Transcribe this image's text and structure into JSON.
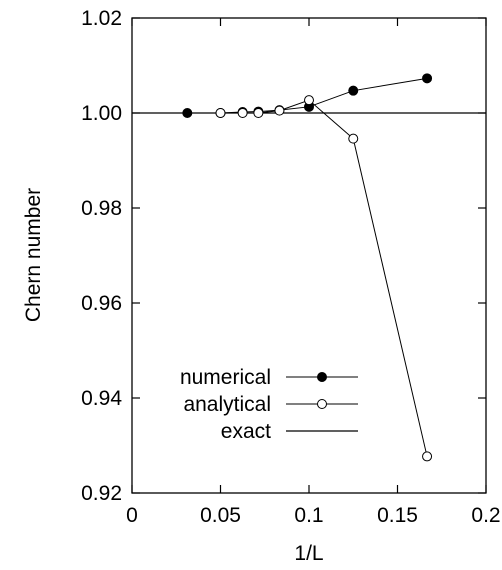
{
  "chart_data": {
    "type": "line",
    "title": "",
    "xlabel": "1/L",
    "ylabel": "Chern number",
    "xlim": [
      0,
      0.2
    ],
    "ylim": [
      0.92,
      1.02
    ],
    "xticks": [
      0,
      0.05,
      0.1,
      0.15,
      0.2
    ],
    "xtick_labels": [
      "0",
      "0.05",
      "0.1",
      "0.15",
      "0.2"
    ],
    "yticks": [
      0.92,
      0.94,
      0.96,
      0.98,
      1.0,
      1.02
    ],
    "ytick_labels": [
      "0.92",
      "0.94",
      "0.96",
      "0.98",
      "1.00",
      "1.02"
    ],
    "grid": false,
    "legend_position": "lower-center",
    "series": [
      {
        "name": "numerical",
        "marker": "filled-circle",
        "color": "#000000",
        "x": [
          0.03125,
          0.05,
          0.0625,
          0.0714,
          0.0833,
          0.1,
          0.125,
          0.1667
        ],
        "y": [
          1.0,
          1.0,
          1.0002,
          1.0003,
          1.0006,
          1.0013,
          1.0047,
          1.0073
        ]
      },
      {
        "name": "analytical",
        "marker": "open-circle",
        "color": "#000000",
        "x": [
          0.05,
          0.0625,
          0.0714,
          0.0833,
          0.1,
          0.125,
          0.1667
        ],
        "y": [
          1.0,
          1.0,
          1.0,
          1.0005,
          1.0027,
          0.9946,
          0.9277
        ]
      }
    ],
    "reference_lines": [
      {
        "name": "exact",
        "y": 1.0,
        "color": "#000000"
      }
    ]
  }
}
